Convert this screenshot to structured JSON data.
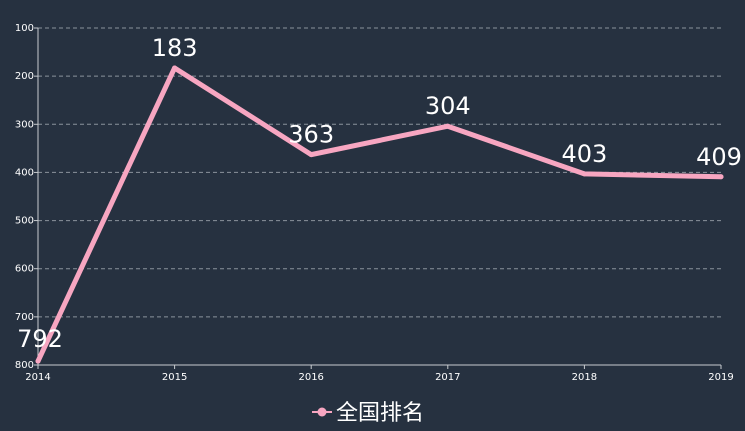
{
  "chart_data": {
    "type": "line",
    "x": [
      "2014",
      "2015",
      "2016",
      "2017",
      "2018",
      "2019"
    ],
    "series": [
      {
        "name": "全国排名",
        "values": [
          792,
          183,
          363,
          304,
          403,
          409
        ]
      }
    ],
    "y_ticks": [
      "100",
      "200",
      "300",
      "400",
      "500",
      "600",
      "700",
      "800"
    ],
    "ylim": [
      100,
      800
    ],
    "y_inverted": true,
    "grid": true,
    "legend_position": "bottom-center",
    "colors": {
      "background": "#263140",
      "line": "#f7a6c1",
      "grid": "#8a939c",
      "axis": "#c8ccd0",
      "text": "#ffffff"
    }
  }
}
